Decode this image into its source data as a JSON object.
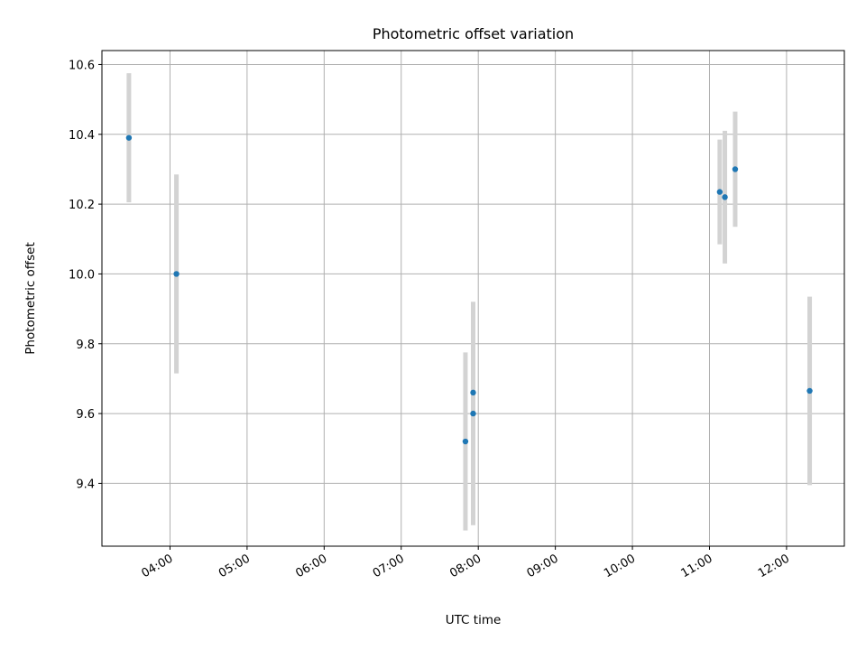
{
  "chart_data": {
    "type": "scatter",
    "title": "Photometric offset variation",
    "xlabel": "UTC time",
    "ylabel": "Photometric offset",
    "x_ticks": [
      "04:00",
      "05:00",
      "06:00",
      "07:00",
      "08:00",
      "09:00",
      "10:00",
      "11:00",
      "12:00"
    ],
    "y_ticks": [
      "9.4",
      "9.6",
      "9.8",
      "10.0",
      "10.2",
      "10.4",
      "10.6"
    ],
    "xlim": [
      "03:07",
      "12:45"
    ],
    "ylim": [
      9.22,
      10.64
    ],
    "grid": true,
    "legend": "none",
    "marker_color": "#1f77b4",
    "errorbar_color": "#d3d3d3",
    "points": [
      {
        "x": "03:28",
        "y": 10.39,
        "yerr": 0.185
      },
      {
        "x": "04:05",
        "y": 10.0,
        "yerr": 0.285
      },
      {
        "x": "07:50",
        "y": 9.52,
        "yerr": 0.255
      },
      {
        "x": "07:56",
        "y": 9.66,
        "yerr": 0.26
      },
      {
        "x": "07:56",
        "y": 9.6,
        "yerr": 0.32
      },
      {
        "x": "11:08",
        "y": 10.235,
        "yerr": 0.15
      },
      {
        "x": "11:12",
        "y": 10.22,
        "yerr": 0.19
      },
      {
        "x": "11:20",
        "y": 10.3,
        "yerr": 0.165
      },
      {
        "x": "12:18",
        "y": 9.665,
        "yerr": 0.27
      }
    ]
  }
}
